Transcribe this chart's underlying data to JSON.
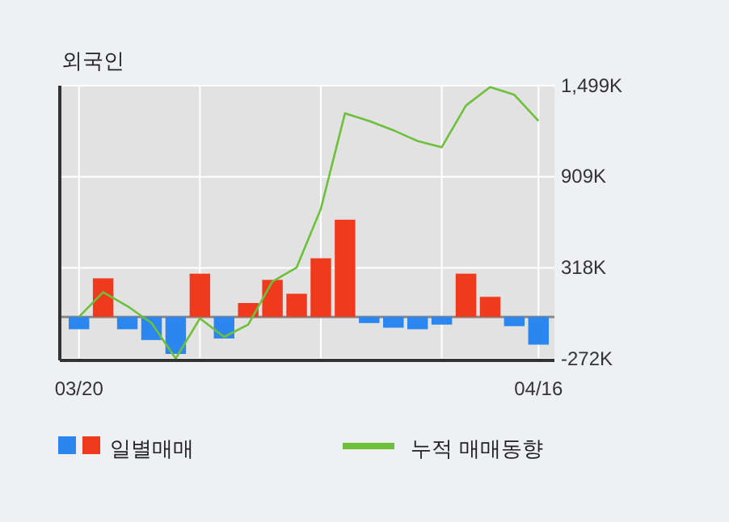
{
  "chart_data": {
    "type": "bar",
    "title": "외국인",
    "categories": [
      "03/20",
      null,
      null,
      null,
      null,
      null,
      null,
      null,
      null,
      null,
      null,
      null,
      null,
      null,
      null,
      null,
      null,
      null,
      null,
      "04/16"
    ],
    "series": [
      {
        "name": "일별매매",
        "colors": [
          "#2b86f0",
          "#f03a1e",
          "#2b86f0",
          "#2b86f0",
          "#2b86f0",
          "#f03a1e",
          "#2b86f0",
          "#f03a1e",
          "#f03a1e",
          "#f03a1e",
          "#f03a1e",
          "#f03a1e",
          "#2b86f0",
          "#2b86f0",
          "#2b86f0",
          "#2b86f0",
          "#f03a1e",
          "#f03a1e",
          "#2b86f0",
          "#2b86f0"
        ],
        "values": [
          -80,
          250,
          -80,
          -150,
          -240,
          280,
          -140,
          90,
          240,
          150,
          380,
          630,
          -40,
          -70,
          -80,
          -50,
          280,
          130,
          -60,
          -180
        ]
      },
      {
        "name": "누적 매매동향",
        "type": "line",
        "color": "#6cc03a",
        "values": [
          0,
          160,
          70,
          -40,
          -270,
          -10,
          -130,
          -50,
          230,
          320,
          700,
          1320,
          1270,
          1210,
          1140,
          1100,
          1370,
          1490,
          1440,
          1270
        ]
      }
    ],
    "ylim": [
      -282,
      1499
    ],
    "yticks": [
      {
        "value": -272,
        "label": "-272K"
      },
      {
        "value": 318,
        "label": "318K"
      },
      {
        "value": 909,
        "label": "909K"
      },
      {
        "value": 1499,
        "label": "1,499K"
      }
    ],
    "grid": true,
    "legend": "bottom"
  }
}
